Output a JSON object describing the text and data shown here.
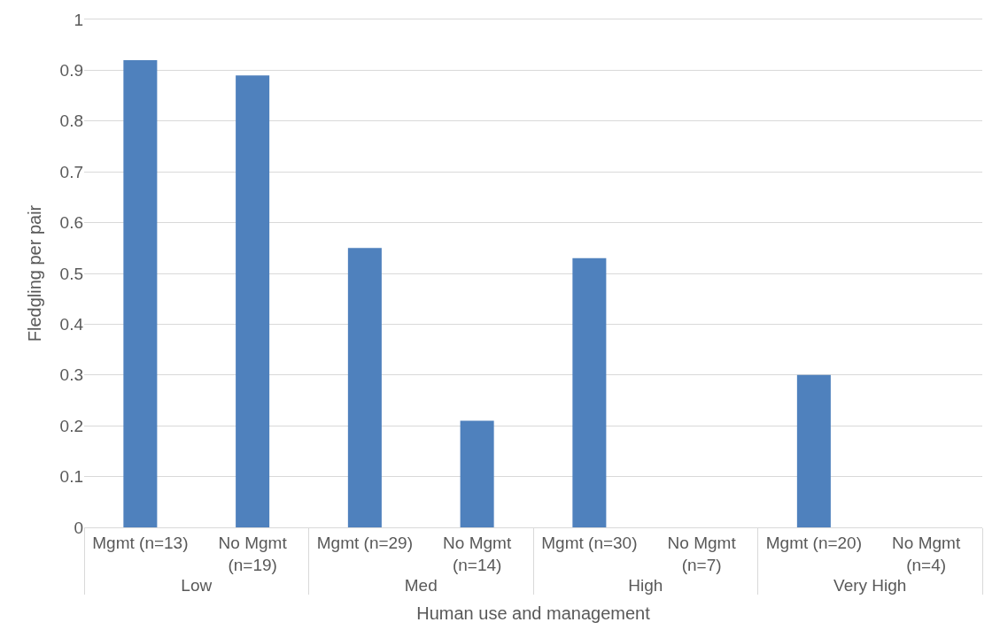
{
  "chart_data": {
    "type": "bar",
    "xlabel": "Human use and management",
    "ylabel": "Fledgling per pair",
    "categories": [
      "Mgmt (n=13)",
      "No Mgmt (n=19)",
      "Mgmt (n=29)",
      "No Mgmt (n=14)",
      "Mgmt (n=30)",
      "No Mgmt (n=7)",
      "Mgmt (n=20)",
      "No Mgmt (n=4)"
    ],
    "values": [
      0.92,
      0.89,
      0.55,
      0.21,
      0.53,
      0,
      0.3,
      0
    ],
    "color": "#4f81bd",
    "annotations": [
      "Low",
      "Med",
      "High",
      "Very High"
    ],
    "ylim": [
      0,
      1
    ],
    "yticks": [
      0,
      0.1,
      0.2,
      0.3,
      0.4,
      0.5,
      0.6,
      0.7,
      0.8,
      0.9,
      1
    ],
    "grid": "y"
  }
}
